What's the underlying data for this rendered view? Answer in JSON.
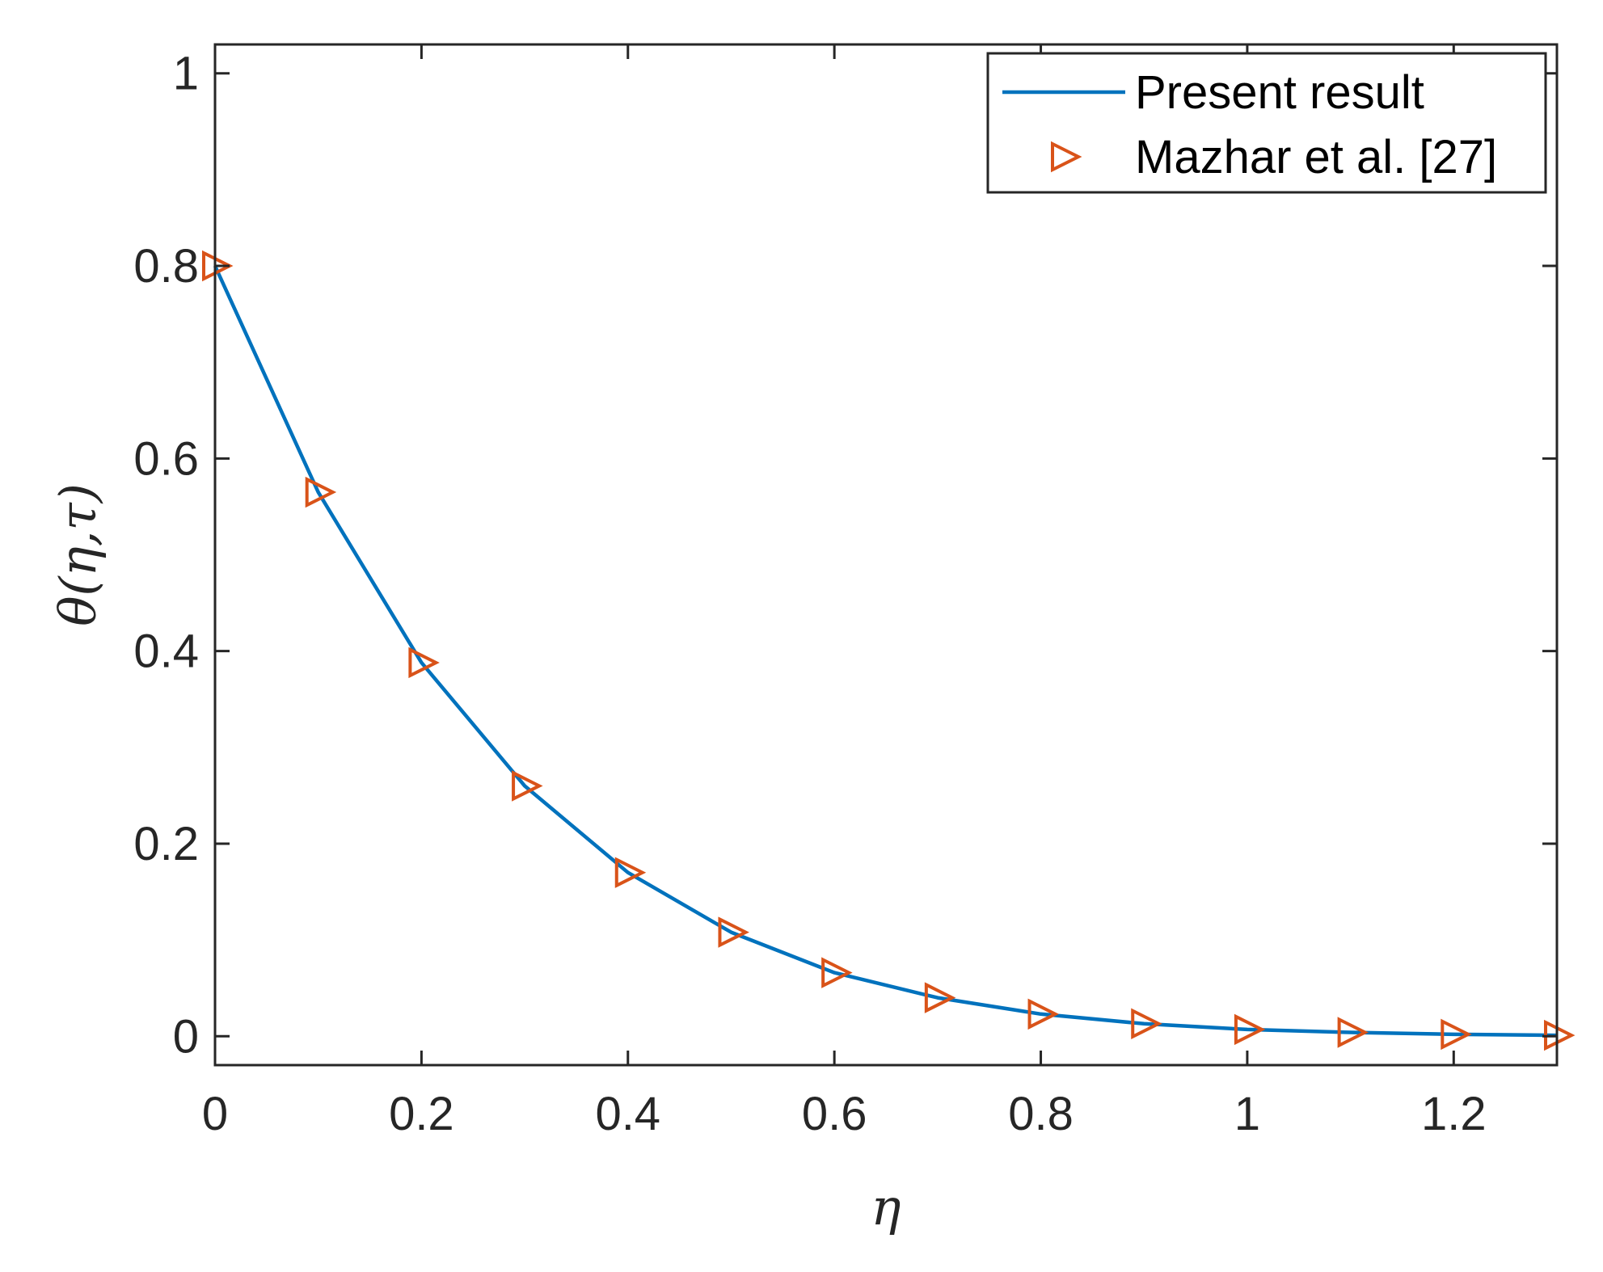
{
  "chart_data": {
    "type": "line",
    "xlabel": "η",
    "ylabel": "θ(η,τ)",
    "xlim": [
      0,
      1.3
    ],
    "ylim": [
      -0.03,
      1.03
    ],
    "xticks": [
      0,
      0.2,
      0.4,
      0.6,
      0.8,
      1,
      1.2
    ],
    "xtick_labels": [
      "0",
      "0.2",
      "0.4",
      "0.6",
      "0.8",
      "1",
      "1.2"
    ],
    "yticks": [
      0,
      0.2,
      0.4,
      0.6,
      0.8,
      1
    ],
    "ytick_labels": [
      "0",
      "0.2",
      "0.4",
      "0.6",
      "0.8",
      "1"
    ],
    "grid": false,
    "legend_position": "top-right",
    "series": [
      {
        "name": "Present result",
        "style": "line",
        "color": "#0072BD",
        "x": [
          0,
          0.1,
          0.2,
          0.3,
          0.4,
          0.5,
          0.6,
          0.7,
          0.8,
          0.9,
          1.0,
          1.1,
          1.2,
          1.3
        ],
        "y": [
          0.8,
          0.565,
          0.388,
          0.26,
          0.17,
          0.108,
          0.066,
          0.04,
          0.023,
          0.013,
          0.007,
          0.004,
          0.002,
          0.001
        ]
      },
      {
        "name": "Mazhar et al. [27]",
        "style": "marker",
        "marker": "triangle-right",
        "color": "#D95319",
        "x": [
          0,
          0.1,
          0.2,
          0.3,
          0.4,
          0.5,
          0.6,
          0.7,
          0.8,
          0.9,
          1.0,
          1.1,
          1.2,
          1.3
        ],
        "y": [
          0.8,
          0.565,
          0.388,
          0.26,
          0.17,
          0.108,
          0.066,
          0.04,
          0.023,
          0.013,
          0.007,
          0.004,
          0.002,
          0.001
        ]
      }
    ]
  }
}
